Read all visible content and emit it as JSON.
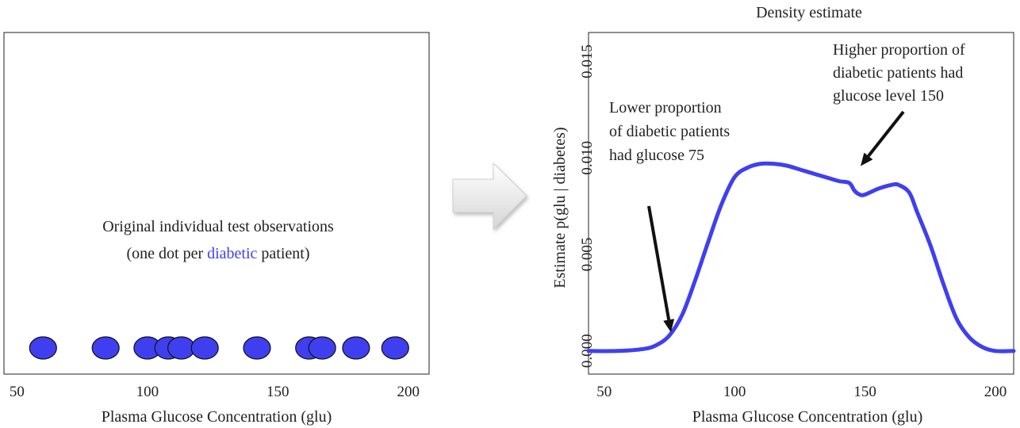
{
  "chart_data": [
    {
      "type": "scatter",
      "title": "",
      "annotation_lines": [
        "Original individual test observations",
        "(one dot per ",
        "diabetic",
        " patient)"
      ],
      "xlabel": "Plasma Glucose Concentration (glu)",
      "ylabel": "",
      "xlim": [
        45,
        208
      ],
      "xticks": [
        50,
        100,
        150,
        200
      ],
      "x": [
        60,
        84,
        100,
        108,
        113,
        122,
        142,
        162,
        167,
        180,
        195
      ],
      "point_color": "#3f3ff0",
      "highlight_color": "#3f3ff0"
    },
    {
      "type": "line",
      "title": "Density estimate",
      "xlabel": "Plasma Glucose Concentration (glu)",
      "ylabel": "Estimate  p(glu | diabetes)",
      "xlim": [
        44,
        207
      ],
      "ylim": [
        -0.0012,
        0.0165
      ],
      "xticks": [
        50,
        100,
        150,
        200
      ],
      "yticks": [
        "0.000",
        "0.005",
        "0.010",
        "0.015"
      ],
      "line_color": "#3f3ff0",
      "series": [
        {
          "x": [
            44,
            55,
            65,
            70,
            75,
            80,
            85,
            90,
            95,
            100,
            105,
            110,
            115,
            120,
            125,
            130,
            135,
            140,
            144,
            146,
            148,
            150,
            155,
            160,
            163,
            167,
            170,
            175,
            180,
            185,
            190,
            195,
            200,
            207
          ],
          "y": [
            0.0,
            0.0,
            0.0001,
            0.0003,
            0.0008,
            0.0019,
            0.0037,
            0.0057,
            0.0076,
            0.009,
            0.0095,
            0.0097,
            0.0097,
            0.0096,
            0.0094,
            0.0092,
            0.009,
            0.0088,
            0.0087,
            0.0083,
            0.0081,
            0.0081,
            0.0084,
            0.0086,
            0.0086,
            0.0082,
            0.0072,
            0.0055,
            0.0035,
            0.0017,
            0.0007,
            0.0002,
            0.0,
            0.0
          ]
        }
      ],
      "annotations": [
        {
          "lines": [
            "Lower proportion",
            "of diabetic patients",
            "had  glucose 75"
          ],
          "arrow_target_x": 75,
          "arrow_target_y": 0.0008
        },
        {
          "lines": [
            "Higher proportion of",
            "diabetic patients had",
            "glucose level 150"
          ],
          "arrow_target_x": 148,
          "arrow_target_y": 0.0095
        }
      ]
    }
  ]
}
